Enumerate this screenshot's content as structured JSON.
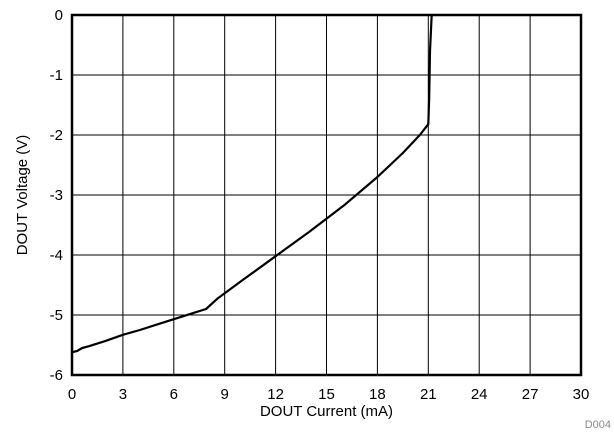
{
  "chart_data": {
    "type": "line",
    "xlabel": "DOUT Current (mA)",
    "ylabel": "DOUT Voltage (V)",
    "xlim": [
      0,
      30
    ],
    "ylim": [
      -6,
      0
    ],
    "xticks": [
      0,
      3,
      6,
      9,
      12,
      15,
      18,
      21,
      24,
      27,
      30
    ],
    "yticks": [
      0,
      -1,
      -2,
      -3,
      -4,
      -5,
      -6
    ],
    "grid": true,
    "series": [
      {
        "color": "#000000",
        "x": [
          0.0,
          0.3,
          0.6,
          1.0,
          2.0,
          3.0,
          4.0,
          5.0,
          6.0,
          7.0,
          7.9,
          8.6,
          10.0,
          12.0,
          14.0,
          16.0,
          18.0,
          19.5,
          20.5,
          21.0,
          21.05,
          21.1,
          21.2
        ],
        "y": [
          -5.62,
          -5.6,
          -5.55,
          -5.52,
          -5.43,
          -5.33,
          -5.25,
          -5.16,
          -5.07,
          -4.98,
          -4.9,
          -4.72,
          -4.43,
          -4.02,
          -3.61,
          -3.18,
          -2.7,
          -2.3,
          -2.0,
          -1.82,
          -1.4,
          -0.6,
          0.0
        ]
      }
    ]
  },
  "figure_id": "D004"
}
